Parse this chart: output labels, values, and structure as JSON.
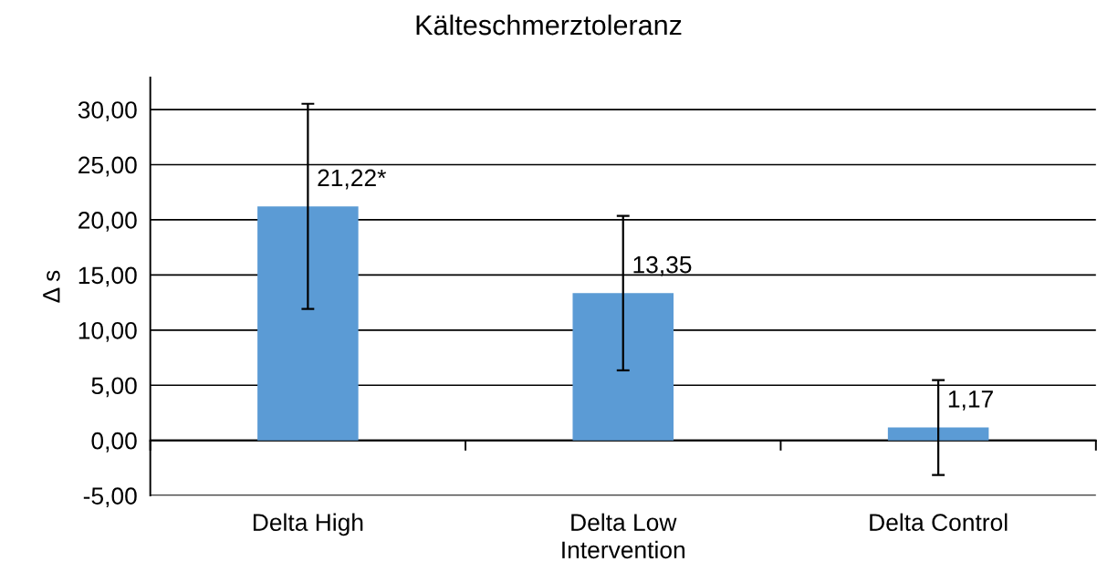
{
  "chart_data": {
    "type": "bar",
    "title": "Kälteschmerztoleranz",
    "xlabel": "Intervention",
    "ylabel": "Δ s",
    "categories": [
      "Delta High",
      "Delta Low",
      "Delta Control"
    ],
    "values": [
      21.22,
      13.35,
      1.17
    ],
    "value_labels": [
      "21,22*",
      "13,35",
      "1,17"
    ],
    "errors": [
      9.3,
      7.0,
      4.3
    ],
    "color": "#5b9bd5",
    "ylim": [
      -5,
      32.9
    ],
    "yticks": [
      {
        "value": -5,
        "label": "-5,00"
      },
      {
        "value": 0,
        "label": "0,00"
      },
      {
        "value": 5,
        "label": "5,00"
      },
      {
        "value": 10,
        "label": "10,00"
      },
      {
        "value": 15,
        "label": "15,00"
      },
      {
        "value": 20,
        "label": "20,00"
      },
      {
        "value": 25,
        "label": "25,00"
      },
      {
        "value": 30,
        "label": "30,00"
      }
    ],
    "grid": "y"
  }
}
